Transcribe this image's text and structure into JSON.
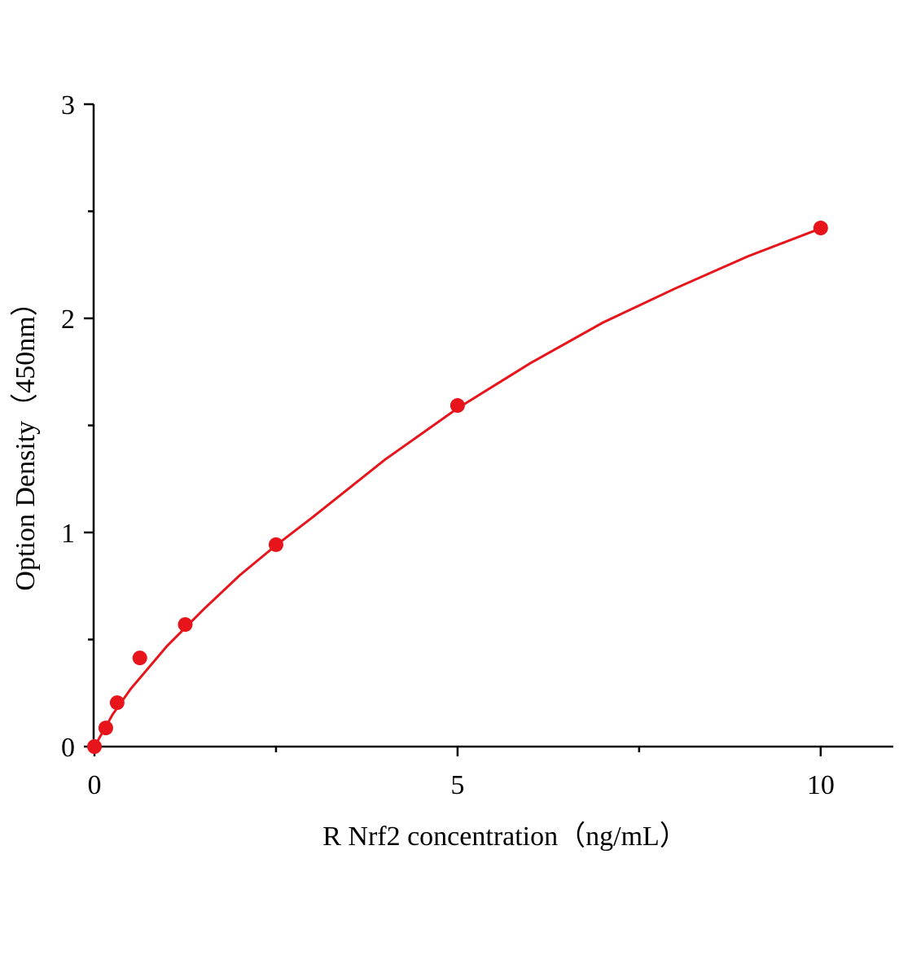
{
  "chart_data": {
    "type": "scatter",
    "xlabel": "R Nrf2 concentration（ng/mL）",
    "ylabel": "Option Density（450nm）",
    "xlim": [
      0,
      11
    ],
    "ylim": [
      0,
      3
    ],
    "xticks": [
      0,
      5,
      10
    ],
    "yticks": [
      0,
      1,
      2,
      3
    ],
    "xminorticks": [
      2.5,
      7.5
    ],
    "yminorticks": [
      0.5,
      1.5,
      2.5
    ],
    "series": [
      {
        "type": "scatter",
        "color": "#e8141b",
        "x": [
          0,
          0.156,
          0.3125,
          0.625,
          1.25,
          2.5,
          5,
          10
        ],
        "values": [
          0,
          0.087,
          0.205,
          0.414,
          0.57,
          0.943,
          1.593,
          2.422
        ]
      },
      {
        "type": "line",
        "color": "#e8141b",
        "x": [
          0,
          0.25,
          0.5,
          1,
          1.5,
          2,
          2.5,
          3,
          4,
          5,
          6,
          7,
          8,
          9,
          10
        ],
        "values": [
          0,
          0.15,
          0.27,
          0.47,
          0.64,
          0.8,
          0.94,
          1.07,
          1.34,
          1.58,
          1.79,
          1.98,
          2.14,
          2.29,
          2.42
        ]
      }
    ]
  }
}
